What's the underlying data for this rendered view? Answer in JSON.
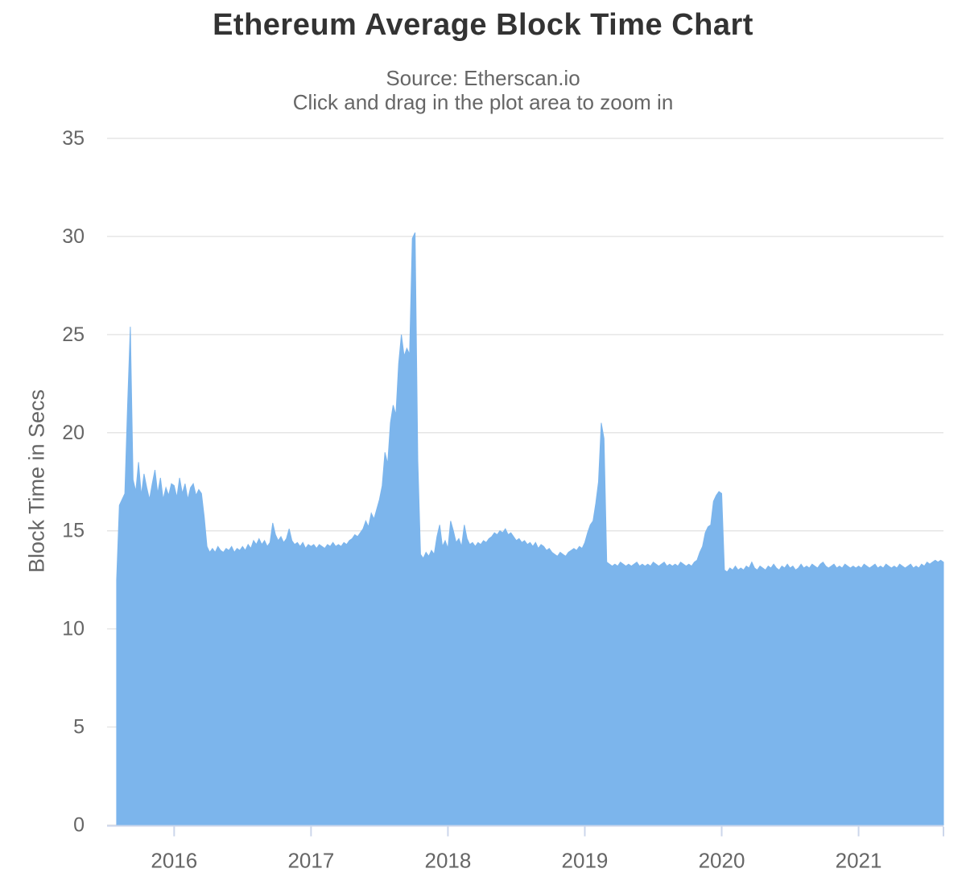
{
  "header": {
    "title": "Ethereum Average Block Time Chart",
    "subtitle_source": "Source: Etherscan.io",
    "subtitle_hint": "Click and drag in the plot area to zoom in"
  },
  "chart_data": {
    "type": "area",
    "title": "Ethereum Average Block Time Chart",
    "subtitle": [
      "Source: Etherscan.io",
      "Click and drag in the plot area to zoom in"
    ],
    "xlabel": "",
    "ylabel": "Block Time in Secs",
    "x_unit": "year",
    "xlim": [
      2015.51,
      2021.62
    ],
    "ylim": [
      0,
      35
    ],
    "x_ticks": [
      2016,
      2017,
      2018,
      2019,
      2020,
      2021
    ],
    "y_ticks": [
      0,
      5,
      10,
      15,
      20,
      25,
      30,
      35
    ],
    "grid": "horizontal",
    "legend": "none",
    "colors": {
      "area_fill": "#7cb5ec",
      "area_line": "#7cb5ec",
      "gridline": "#e6e6e6",
      "axis_line": "#ccd6eb",
      "tick": "#ccd6eb",
      "title": "#333333",
      "subtitle": "#666666",
      "axis_label": "#666666"
    },
    "series": [
      {
        "name": "Block Time in Secs",
        "x_start": 2015.58,
        "x_step": 0.02,
        "values": [
          12.5,
          16.3,
          16.6,
          16.9,
          21.4,
          25.4,
          17.6,
          17.0,
          18.5,
          16.8,
          17.9,
          17.2,
          16.6,
          17.4,
          18.1,
          16.9,
          17.7,
          16.6,
          17.2,
          16.8,
          17.4,
          17.3,
          16.7,
          17.7,
          16.9,
          17.4,
          16.6,
          17.2,
          17.4,
          16.8,
          17.1,
          16.9,
          15.7,
          14.2,
          13.9,
          14.1,
          13.9,
          14.2,
          14.0,
          13.9,
          14.1,
          14.0,
          14.2,
          13.9,
          14.1,
          14.0,
          14.2,
          14.0,
          14.3,
          14.1,
          14.5,
          14.3,
          14.6,
          14.3,
          14.5,
          14.2,
          14.4,
          15.4,
          14.8,
          14.5,
          14.7,
          14.4,
          14.6,
          15.1,
          14.5,
          14.3,
          14.4,
          14.2,
          14.4,
          14.1,
          14.3,
          14.2,
          14.3,
          14.1,
          14.3,
          14.2,
          14.1,
          14.3,
          14.2,
          14.4,
          14.2,
          14.3,
          14.2,
          14.4,
          14.3,
          14.5,
          14.6,
          14.8,
          14.7,
          14.9,
          15.1,
          15.5,
          15.2,
          15.9,
          15.6,
          16.1,
          16.6,
          17.3,
          19.0,
          18.4,
          20.5,
          21.4,
          20.9,
          23.5,
          25.0,
          23.9,
          24.3,
          24.0,
          29.9,
          30.2,
          18.6,
          13.8,
          13.6,
          13.9,
          13.7,
          14.0,
          13.8,
          14.7,
          15.3,
          14.2,
          14.5,
          14.1,
          15.5,
          15.0,
          14.4,
          14.6,
          14.2,
          15.3,
          14.6,
          14.3,
          14.4,
          14.2,
          14.4,
          14.3,
          14.5,
          14.4,
          14.6,
          14.7,
          14.9,
          14.8,
          15.0,
          14.9,
          15.1,
          14.8,
          14.9,
          14.7,
          14.5,
          14.6,
          14.4,
          14.5,
          14.3,
          14.4,
          14.2,
          14.4,
          14.1,
          14.3,
          14.2,
          14.0,
          14.1,
          13.9,
          13.8,
          13.7,
          13.9,
          13.8,
          13.7,
          13.9,
          14.0,
          14.1,
          14.0,
          14.2,
          14.1,
          14.4,
          14.9,
          15.3,
          15.5,
          16.4,
          17.5,
          20.5,
          19.7,
          13.4,
          13.3,
          13.2,
          13.3,
          13.2,
          13.4,
          13.3,
          13.2,
          13.3,
          13.2,
          13.3,
          13.4,
          13.2,
          13.3,
          13.2,
          13.3,
          13.2,
          13.4,
          13.3,
          13.2,
          13.3,
          13.4,
          13.2,
          13.3,
          13.2,
          13.3,
          13.2,
          13.4,
          13.3,
          13.2,
          13.3,
          13.2,
          13.4,
          13.5,
          13.9,
          14.2,
          14.9,
          15.2,
          15.3,
          16.5,
          16.8,
          17.0,
          16.9,
          13.0,
          12.9,
          13.1,
          13.0,
          13.2,
          13.0,
          13.1,
          13.0,
          13.2,
          13.1,
          13.4,
          13.1,
          13.0,
          13.2,
          13.1,
          13.0,
          13.2,
          13.1,
          13.3,
          13.1,
          13.0,
          13.2,
          13.1,
          13.3,
          13.1,
          13.2,
          13.0,
          13.1,
          13.3,
          13.1,
          13.2,
          13.1,
          13.3,
          13.2,
          13.1,
          13.3,
          13.4,
          13.2,
          13.1,
          13.2,
          13.3,
          13.1,
          13.2,
          13.1,
          13.3,
          13.2,
          13.1,
          13.2,
          13.1,
          13.2,
          13.1,
          13.3,
          13.2,
          13.1,
          13.2,
          13.3,
          13.1,
          13.2,
          13.1,
          13.3,
          13.2,
          13.1,
          13.2,
          13.1,
          13.3,
          13.2,
          13.1,
          13.2,
          13.3,
          13.1,
          13.2,
          13.1,
          13.3,
          13.2,
          13.4,
          13.3,
          13.4,
          13.5,
          13.4,
          13.5,
          13.4
        ]
      }
    ]
  }
}
